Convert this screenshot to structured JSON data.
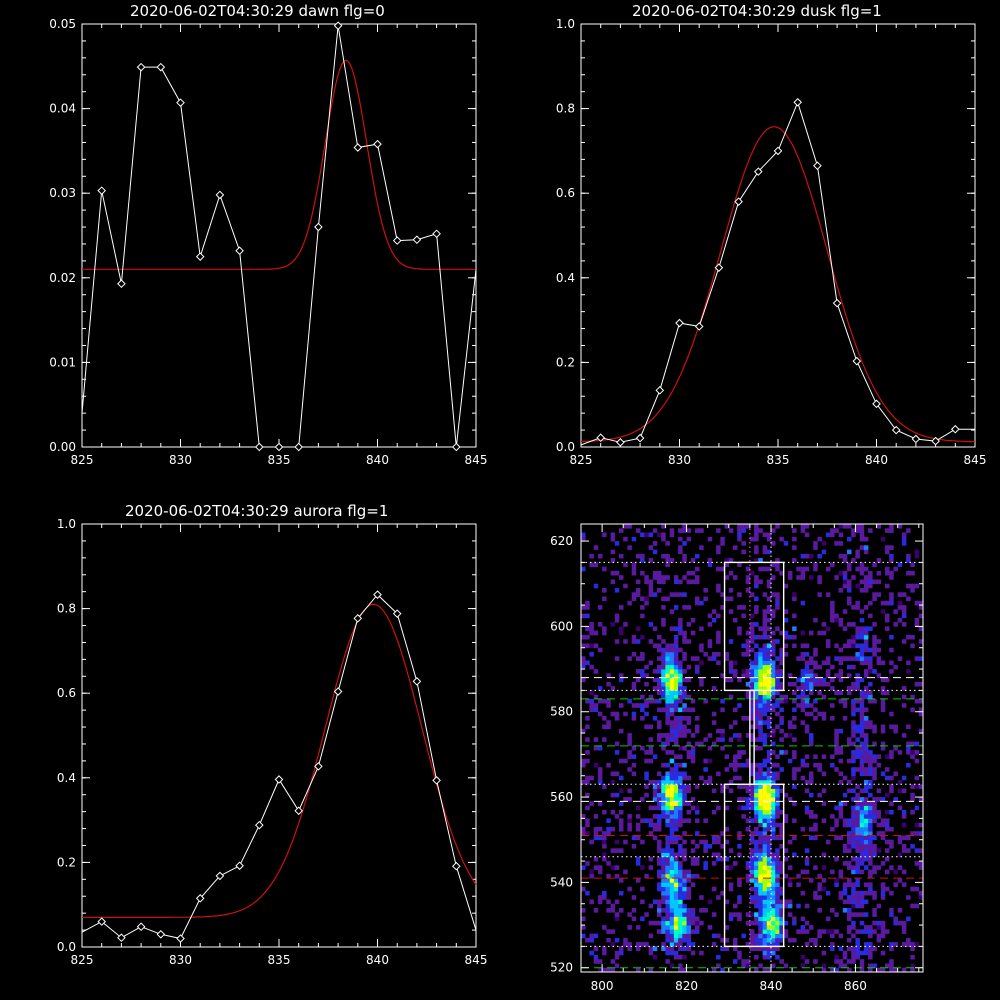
{
  "colors": {
    "background": "#000000",
    "data_line": "#ffffff",
    "fit_line": "#cc1111"
  },
  "chart_data": [
    {
      "type": "line",
      "title": "2020-06-02T04:30:29 dawn flg=0",
      "xlim": [
        825,
        845
      ],
      "ylim": [
        0,
        0.05
      ],
      "xticks": [
        825,
        830,
        835,
        840,
        845
      ],
      "yticks": [
        0,
        0.01,
        0.02,
        0.03,
        0.04,
        0.05
      ],
      "ytick_labels": [
        "0.00",
        "0.01",
        "0.02",
        "0.03",
        "0.04",
        "0.05"
      ],
      "x": [
        825,
        826,
        827,
        828,
        829,
        830,
        831,
        832,
        833,
        834,
        835,
        836,
        837,
        838,
        839,
        840,
        841,
        842,
        843,
        844,
        845
      ],
      "y": [
        0.004,
        0.0303,
        0.0193,
        0.0449,
        0.0449,
        0.0407,
        0.0225,
        0.0298,
        0.0232,
        0.0,
        0.0,
        0.0,
        0.026,
        0.0498,
        0.0354,
        0.0358,
        0.0244,
        0.0245,
        0.0252,
        0.0,
        0.021
      ],
      "fit": {
        "baseline": 0.021,
        "amplitude": 0.0247,
        "center": 838.4,
        "sigma": 1.05
      }
    },
    {
      "type": "line",
      "title": "2020-06-02T04:30:29 dusk flg=1",
      "xlim": [
        825,
        845
      ],
      "ylim": [
        0,
        1.0
      ],
      "xticks": [
        825,
        830,
        835,
        840,
        845
      ],
      "yticks": [
        0,
        0.2,
        0.4,
        0.6,
        0.8,
        1.0
      ],
      "ytick_labels": [
        "0.0",
        "0.2",
        "0.4",
        "0.6",
        "0.8",
        "1.0"
      ],
      "x": [
        825,
        826,
        827,
        828,
        829,
        830,
        831,
        832,
        833,
        834,
        835,
        836,
        837,
        838,
        839,
        840,
        841,
        842,
        843,
        844,
        845
      ],
      "y": [
        0.005,
        0.022,
        0.011,
        0.021,
        0.134,
        0.293,
        0.285,
        0.424,
        0.58,
        0.651,
        0.7,
        0.815,
        0.665,
        0.34,
        0.203,
        0.102,
        0.04,
        0.019,
        0.014,
        0.042,
        0.042
      ],
      "fit": {
        "baseline": 0.012,
        "amplitude": 0.745,
        "center": 834.8,
        "sigma": 2.7
      }
    },
    {
      "type": "line",
      "title": "2020-06-02T04:30:29 aurora flg=1",
      "xlim": [
        825,
        845
      ],
      "ylim": [
        0,
        1.0
      ],
      "xticks": [
        825,
        830,
        835,
        840,
        845
      ],
      "yticks": [
        0,
        0.2,
        0.4,
        0.6,
        0.8,
        1.0
      ],
      "ytick_labels": [
        "0.0",
        "0.2",
        "0.4",
        "0.6",
        "0.8",
        "1.0"
      ],
      "x": [
        825,
        826,
        827,
        828,
        829,
        830,
        831,
        832,
        833,
        834,
        835,
        836,
        837,
        838,
        839,
        840,
        841,
        842,
        843,
        844,
        845
      ],
      "y": [
        0.035,
        0.06,
        0.022,
        0.048,
        0.03,
        0.02,
        0.115,
        0.168,
        0.192,
        0.288,
        0.396,
        0.322,
        0.427,
        0.604,
        0.777,
        0.833,
        0.788,
        0.628,
        0.394,
        0.191,
        0.04
      ],
      "fit": {
        "baseline": 0.07,
        "amplitude": 0.74,
        "center": 839.8,
        "sigma": 2.45
      }
    },
    {
      "type": "heatmap",
      "title": "",
      "xlim": [
        795,
        876
      ],
      "ylim": [
        519,
        624
      ],
      "xticks": [
        800,
        820,
        840,
        860
      ],
      "yticks": [
        520,
        540,
        560,
        580,
        600,
        620
      ],
      "palette": [
        "#3a006b",
        "#5a1aa0",
        "#2a2ae0",
        "#1e7bff",
        "#00c8ff",
        "#00ffc0",
        "#a0ff00",
        "#ffff00"
      ],
      "hotspots": [
        {
          "x": 816,
          "y": 587,
          "intensity": 0.7
        },
        {
          "x": 838,
          "y": 587,
          "intensity": 0.95
        },
        {
          "x": 848,
          "y": 586,
          "intensity": 0.35
        },
        {
          "x": 816,
          "y": 560,
          "intensity": 0.75
        },
        {
          "x": 838,
          "y": 559,
          "intensity": 1.0
        },
        {
          "x": 838,
          "y": 541,
          "intensity": 0.85
        },
        {
          "x": 816,
          "y": 540,
          "intensity": 0.55
        },
        {
          "x": 818,
          "y": 530,
          "intensity": 0.6
        },
        {
          "x": 840,
          "y": 530,
          "intensity": 0.7
        },
        {
          "x": 862,
          "y": 553,
          "intensity": 0.35
        }
      ],
      "boxes": [
        {
          "x0": 829,
          "x1": 843,
          "y0": 585,
          "y1": 615
        },
        {
          "x0": 829,
          "x1": 843,
          "y0": 525,
          "y1": 563
        },
        {
          "x0": 835,
          "x1": 836,
          "y0": 563,
          "y1": 585
        }
      ],
      "hlines": [
        {
          "y": 615,
          "style": "dotted",
          "color": "#ffffff"
        },
        {
          "y": 588,
          "style": "dashed",
          "color": "#ffffff"
        },
        {
          "y": 585,
          "style": "dotted",
          "color": "#ffffff"
        },
        {
          "y": 583,
          "style": "dashed",
          "color": "#00cc00"
        },
        {
          "y": 572,
          "style": "dashed",
          "color": "#00cc00"
        },
        {
          "y": 563,
          "style": "dotted",
          "color": "#ffffff"
        },
        {
          "y": 559,
          "style": "dashed",
          "color": "#ffffff"
        },
        {
          "y": 551,
          "style": "dashed",
          "color": "#cc1111"
        },
        {
          "y": 546,
          "style": "dotted",
          "color": "#ffffff"
        },
        {
          "y": 541,
          "style": "dashed",
          "color": "#cc1111"
        },
        {
          "y": 525,
          "style": "dotted",
          "color": "#ffffff"
        },
        {
          "y": 520,
          "style": "dashed",
          "color": "#00cc00"
        }
      ],
      "vlines": [
        {
          "x": 835,
          "style": "dotted",
          "color": "#ff66ff"
        },
        {
          "x": 840,
          "style": "dotted",
          "color": "#ffffff"
        }
      ]
    }
  ]
}
